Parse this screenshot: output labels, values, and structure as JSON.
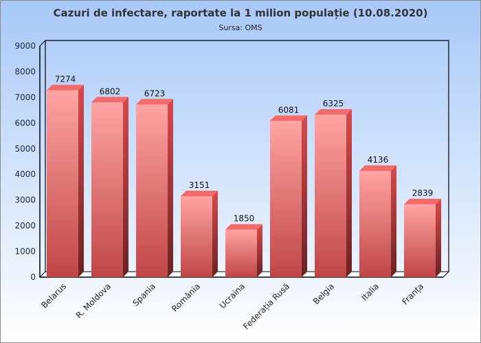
{
  "chart_data": {
    "type": "bar",
    "title": "Cazuri de infectare, raportate la 1 milion populație (10.08.2020)",
    "subtitle": "Sursa: OMS",
    "categories": [
      "Belarus",
      "R. Moldova",
      "Spania",
      "România",
      "Ucraina",
      "Federația Rusă",
      "Belgia",
      "Italia",
      "Franța"
    ],
    "values": [
      7274,
      6802,
      6723,
      3151,
      1850,
      6081,
      6325,
      4136,
      2839
    ],
    "ylim": [
      0,
      9000
    ],
    "yticks": [
      0,
      1000,
      2000,
      3000,
      4000,
      5000,
      6000,
      7000,
      8000,
      9000
    ],
    "xlabel": "",
    "ylabel": "",
    "grid": false,
    "legend": "none",
    "colors": {
      "bar_top": "#f46a6a",
      "bar_front_light": "#ffa4a4",
      "bar_front_dark": "#c04646",
      "bar_side": "#7a2828",
      "bg_top": "#a8c8f8",
      "bg_bottom": "#ffffff"
    }
  }
}
